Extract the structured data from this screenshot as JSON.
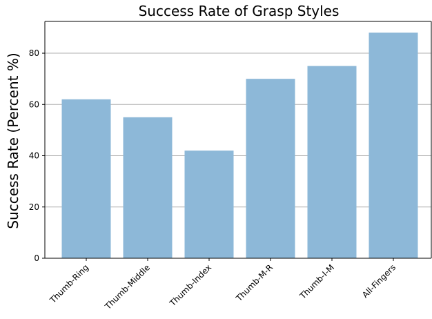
{
  "chart_data": {
    "type": "bar",
    "title": "Success Rate of Grasp Styles",
    "xlabel": "",
    "ylabel": "Success Rate (Percent %)",
    "categories": [
      "Thumb-Ring",
      "Thumb-Middle",
      "Thumb-Index",
      "Thumb-M-R",
      "Thumb-I-M",
      "All-Fingers"
    ],
    "values": [
      62,
      55,
      42,
      70,
      75,
      88
    ],
    "ylim": [
      0,
      92.4
    ],
    "yticks": [
      0,
      20,
      40,
      60,
      80
    ],
    "ytick_labels": [
      "0",
      "20",
      "40",
      "60",
      "80"
    ],
    "grid": "horizontal",
    "colors": {
      "bar": "#8db8d8",
      "grid": "#b0b0b0",
      "axis": "#000000"
    }
  }
}
